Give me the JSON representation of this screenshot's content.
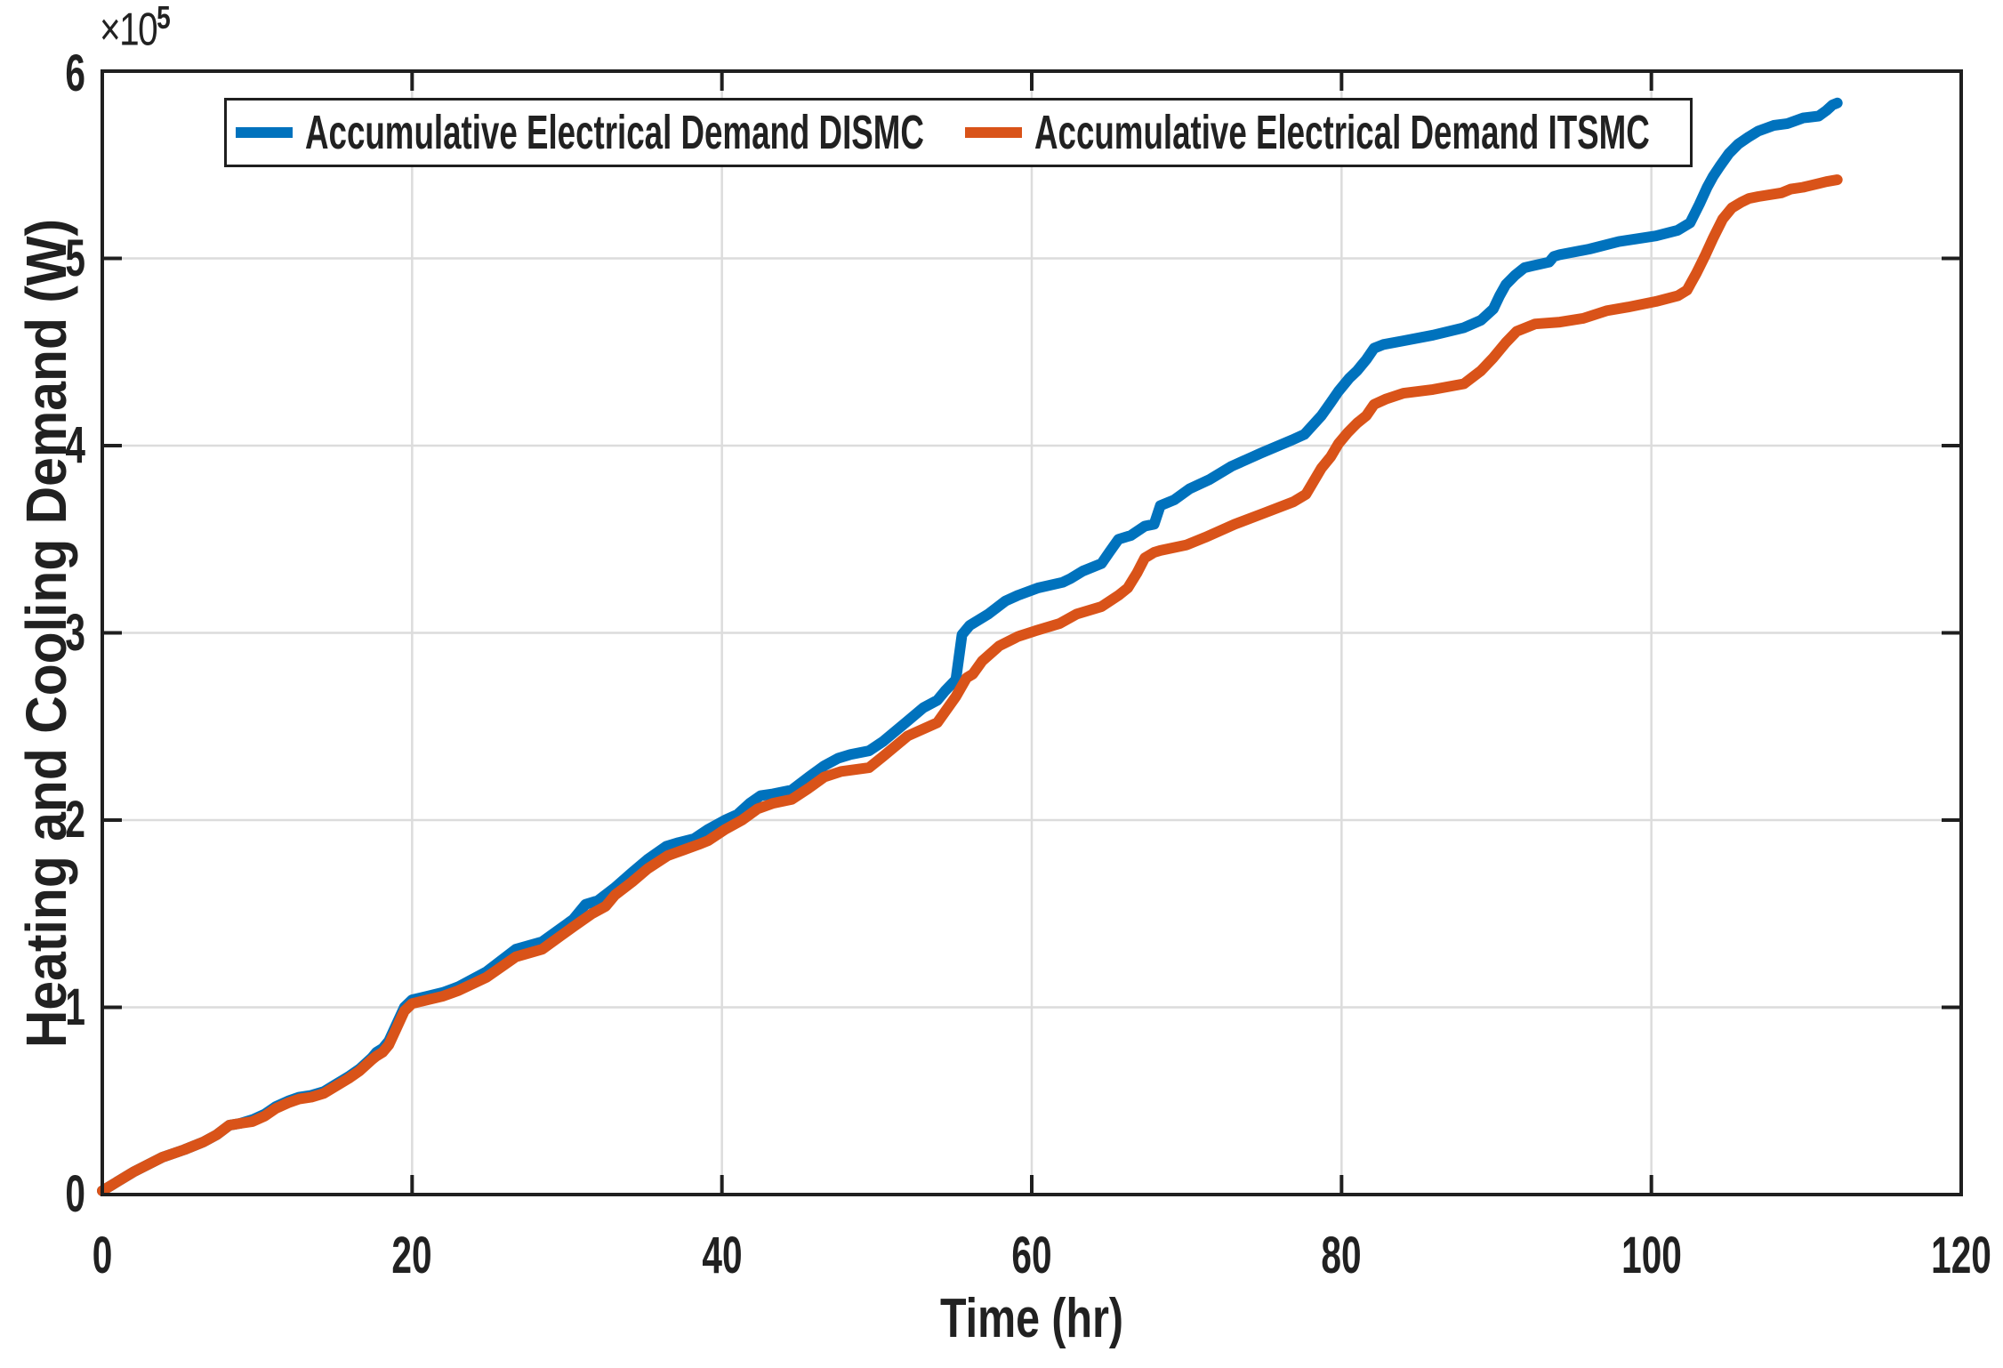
{
  "figure": {
    "y_multiplier_base": "×10",
    "y_multiplier_exponent": "5"
  },
  "chart_data": {
    "type": "line",
    "title": "",
    "xlabel": "Time (hr)",
    "ylabel": "Heating and Cooling Demand (W)",
    "y_unit_note": "values in units of 1e5 W (axis multiplier ×10^5)",
    "xlim": [
      0,
      120
    ],
    "ylim": [
      0,
      6
    ],
    "xticks": [
      0,
      20,
      40,
      60,
      80,
      100,
      120
    ],
    "yticks": [
      0,
      1,
      2,
      3,
      4,
      5,
      6
    ],
    "grid": true,
    "legend_position": "top-inside",
    "axis_color": "#1f1f1f",
    "grid_color": "#dcdcdc",
    "series": [
      {
        "name": "Accumulative Electrical Demand DISMC",
        "color": "#0072BD",
        "points": [
          [
            0,
            0.02
          ],
          [
            1,
            0.07
          ],
          [
            2,
            0.12
          ],
          [
            3.9,
            0.2
          ],
          [
            5.3,
            0.24
          ],
          [
            6.5,
            0.28
          ],
          [
            7.4,
            0.32
          ],
          [
            8.2,
            0.37
          ],
          [
            8.9,
            0.38
          ],
          [
            9.7,
            0.4
          ],
          [
            10.5,
            0.43
          ],
          [
            11.2,
            0.47
          ],
          [
            12,
            0.5
          ],
          [
            12.7,
            0.52
          ],
          [
            13.5,
            0.53
          ],
          [
            14.3,
            0.55
          ],
          [
            15.1,
            0.59
          ],
          [
            15.9,
            0.63
          ],
          [
            16.6,
            0.67
          ],
          [
            17.4,
            0.73
          ],
          [
            17.7,
            0.76
          ],
          [
            18.1,
            0.78
          ],
          [
            18.5,
            0.82
          ],
          [
            19,
            0.91
          ],
          [
            19.5,
            1.0
          ],
          [
            20,
            1.04
          ],
          [
            21,
            1.06
          ],
          [
            22,
            1.08
          ],
          [
            23,
            1.11
          ],
          [
            24.8,
            1.19
          ],
          [
            26.7,
            1.31
          ],
          [
            28.4,
            1.35
          ],
          [
            30.4,
            1.47
          ],
          [
            31.2,
            1.55
          ],
          [
            32,
            1.57
          ],
          [
            33.1,
            1.64
          ],
          [
            34.2,
            1.72
          ],
          [
            35.2,
            1.79
          ],
          [
            36.4,
            1.86
          ],
          [
            37.2,
            1.88
          ],
          [
            38.2,
            1.9
          ],
          [
            39.1,
            1.95
          ],
          [
            40.2,
            2.0
          ],
          [
            41,
            2.03
          ],
          [
            41.8,
            2.09
          ],
          [
            42.5,
            2.13
          ],
          [
            43.3,
            2.14
          ],
          [
            44.5,
            2.16
          ],
          [
            45.6,
            2.23
          ],
          [
            46.6,
            2.29
          ],
          [
            47.5,
            2.33
          ],
          [
            48.3,
            2.35
          ],
          [
            49.5,
            2.37
          ],
          [
            50.4,
            2.42
          ],
          [
            52,
            2.53
          ],
          [
            53,
            2.6
          ],
          [
            53.9,
            2.64
          ],
          [
            54.4,
            2.69
          ],
          [
            55.1,
            2.75
          ],
          [
            55.5,
            2.99
          ],
          [
            56,
            3.04
          ],
          [
            57.2,
            3.1
          ],
          [
            58.3,
            3.17
          ],
          [
            59.1,
            3.2
          ],
          [
            60.4,
            3.24
          ],
          [
            62,
            3.27
          ],
          [
            62.5,
            3.29
          ],
          [
            63.3,
            3.33
          ],
          [
            64.5,
            3.37
          ],
          [
            65,
            3.43
          ],
          [
            65.6,
            3.5
          ],
          [
            66.4,
            3.52
          ],
          [
            67.3,
            3.57
          ],
          [
            67.9,
            3.58
          ],
          [
            68.3,
            3.68
          ],
          [
            69.2,
            3.71
          ],
          [
            70.2,
            3.77
          ],
          [
            71.5,
            3.82
          ],
          [
            72.9,
            3.89
          ],
          [
            74.8,
            3.96
          ],
          [
            76.8,
            4.03
          ],
          [
            77.6,
            4.06
          ],
          [
            78.7,
            4.16
          ],
          [
            79.3,
            4.23
          ],
          [
            79.8,
            4.29
          ],
          [
            80.2,
            4.33
          ],
          [
            80.5,
            4.36
          ],
          [
            81,
            4.4
          ],
          [
            81.6,
            4.46
          ],
          [
            82.1,
            4.52
          ],
          [
            82.7,
            4.54
          ],
          [
            84,
            4.56
          ],
          [
            85.9,
            4.59
          ],
          [
            87.9,
            4.63
          ],
          [
            89,
            4.67
          ],
          [
            89.8,
            4.73
          ],
          [
            90.2,
            4.8
          ],
          [
            90.6,
            4.86
          ],
          [
            91.2,
            4.91
          ],
          [
            91.8,
            4.95
          ],
          [
            92.3,
            4.96
          ],
          [
            93.4,
            4.98
          ],
          [
            93.7,
            5.01
          ],
          [
            94.1,
            5.02
          ],
          [
            96,
            5.05
          ],
          [
            97.9,
            5.09
          ],
          [
            100.3,
            5.12
          ],
          [
            101.7,
            5.15
          ],
          [
            102.5,
            5.19
          ],
          [
            103.1,
            5.29
          ],
          [
            103.6,
            5.38
          ],
          [
            104,
            5.44
          ],
          [
            104.4,
            5.49
          ],
          [
            105,
            5.56
          ],
          [
            105.6,
            5.61
          ],
          [
            106.3,
            5.65
          ],
          [
            106.9,
            5.68
          ],
          [
            107.9,
            5.71
          ],
          [
            108.8,
            5.72
          ],
          [
            109.8,
            5.75
          ],
          [
            110.8,
            5.76
          ],
          [
            111.3,
            5.79
          ],
          [
            111.7,
            5.82
          ],
          [
            112,
            5.83
          ]
        ]
      },
      {
        "name": "Accumulative Electrical Demand ITSMC",
        "color": "#D95319",
        "points": [
          [
            0,
            0.02
          ],
          [
            1,
            0.07
          ],
          [
            2,
            0.12
          ],
          [
            3.9,
            0.2
          ],
          [
            5.3,
            0.24
          ],
          [
            6.5,
            0.28
          ],
          [
            7.4,
            0.32
          ],
          [
            8.2,
            0.37
          ],
          [
            8.9,
            0.38
          ],
          [
            9.7,
            0.39
          ],
          [
            10.5,
            0.42
          ],
          [
            11.2,
            0.46
          ],
          [
            12,
            0.49
          ],
          [
            12.7,
            0.51
          ],
          [
            13.5,
            0.52
          ],
          [
            14.3,
            0.54
          ],
          [
            15.1,
            0.58
          ],
          [
            15.9,
            0.62
          ],
          [
            16.6,
            0.66
          ],
          [
            17.4,
            0.72
          ],
          [
            17.7,
            0.74
          ],
          [
            18.1,
            0.76
          ],
          [
            18.5,
            0.8
          ],
          [
            19,
            0.89
          ],
          [
            19.5,
            0.98
          ],
          [
            20,
            1.02
          ],
          [
            21,
            1.04
          ],
          [
            22,
            1.06
          ],
          [
            23,
            1.09
          ],
          [
            24.8,
            1.16
          ],
          [
            26.7,
            1.27
          ],
          [
            28.4,
            1.31
          ],
          [
            30.4,
            1.43
          ],
          [
            31.6,
            1.5
          ],
          [
            32.5,
            1.54
          ],
          [
            33.1,
            1.6
          ],
          [
            34.2,
            1.67
          ],
          [
            35.2,
            1.74
          ],
          [
            36.5,
            1.81
          ],
          [
            37.5,
            1.84
          ],
          [
            38.5,
            1.87
          ],
          [
            39.1,
            1.89
          ],
          [
            40.2,
            1.95
          ],
          [
            41.3,
            2.0
          ],
          [
            42.3,
            2.06
          ],
          [
            43.3,
            2.09
          ],
          [
            44.5,
            2.11
          ],
          [
            45.6,
            2.17
          ],
          [
            46.6,
            2.23
          ],
          [
            47.7,
            2.26
          ],
          [
            49.5,
            2.28
          ],
          [
            50.4,
            2.34
          ],
          [
            52,
            2.45
          ],
          [
            53.9,
            2.52
          ],
          [
            55.1,
            2.66
          ],
          [
            55.8,
            2.76
          ],
          [
            56.2,
            2.78
          ],
          [
            56.8,
            2.85
          ],
          [
            57.9,
            2.93
          ],
          [
            59.1,
            2.98
          ],
          [
            60.2,
            3.01
          ],
          [
            61.8,
            3.05
          ],
          [
            62.9,
            3.1
          ],
          [
            64.5,
            3.14
          ],
          [
            65.6,
            3.2
          ],
          [
            66.2,
            3.24
          ],
          [
            66.8,
            3.32
          ],
          [
            67.3,
            3.4
          ],
          [
            67.9,
            3.43
          ],
          [
            68.3,
            3.44
          ],
          [
            70,
            3.47
          ],
          [
            71.2,
            3.51
          ],
          [
            73.1,
            3.58
          ],
          [
            75,
            3.64
          ],
          [
            76.9,
            3.7
          ],
          [
            77.7,
            3.74
          ],
          [
            78.7,
            3.88
          ],
          [
            79.3,
            3.94
          ],
          [
            79.8,
            4.01
          ],
          [
            80.4,
            4.07
          ],
          [
            81,
            4.12
          ],
          [
            81.6,
            4.16
          ],
          [
            82.1,
            4.22
          ],
          [
            82.9,
            4.25
          ],
          [
            84,
            4.28
          ],
          [
            85.9,
            4.3
          ],
          [
            87.9,
            4.33
          ],
          [
            89,
            4.4
          ],
          [
            89.8,
            4.47
          ],
          [
            90.6,
            4.55
          ],
          [
            91.3,
            4.61
          ],
          [
            92.5,
            4.65
          ],
          [
            94.1,
            4.66
          ],
          [
            95.6,
            4.68
          ],
          [
            97.1,
            4.72
          ],
          [
            98.5,
            4.74
          ],
          [
            100.3,
            4.77
          ],
          [
            101.7,
            4.8
          ],
          [
            102.3,
            4.83
          ],
          [
            102.9,
            4.92
          ],
          [
            103.5,
            5.02
          ],
          [
            104,
            5.11
          ],
          [
            104.6,
            5.21
          ],
          [
            105.2,
            5.27
          ],
          [
            105.8,
            5.3
          ],
          [
            106.3,
            5.32
          ],
          [
            106.9,
            5.33
          ],
          [
            108.4,
            5.35
          ],
          [
            109,
            5.37
          ],
          [
            109.8,
            5.38
          ],
          [
            110.8,
            5.4
          ],
          [
            111.3,
            5.41
          ],
          [
            112,
            5.42
          ]
        ]
      }
    ]
  }
}
